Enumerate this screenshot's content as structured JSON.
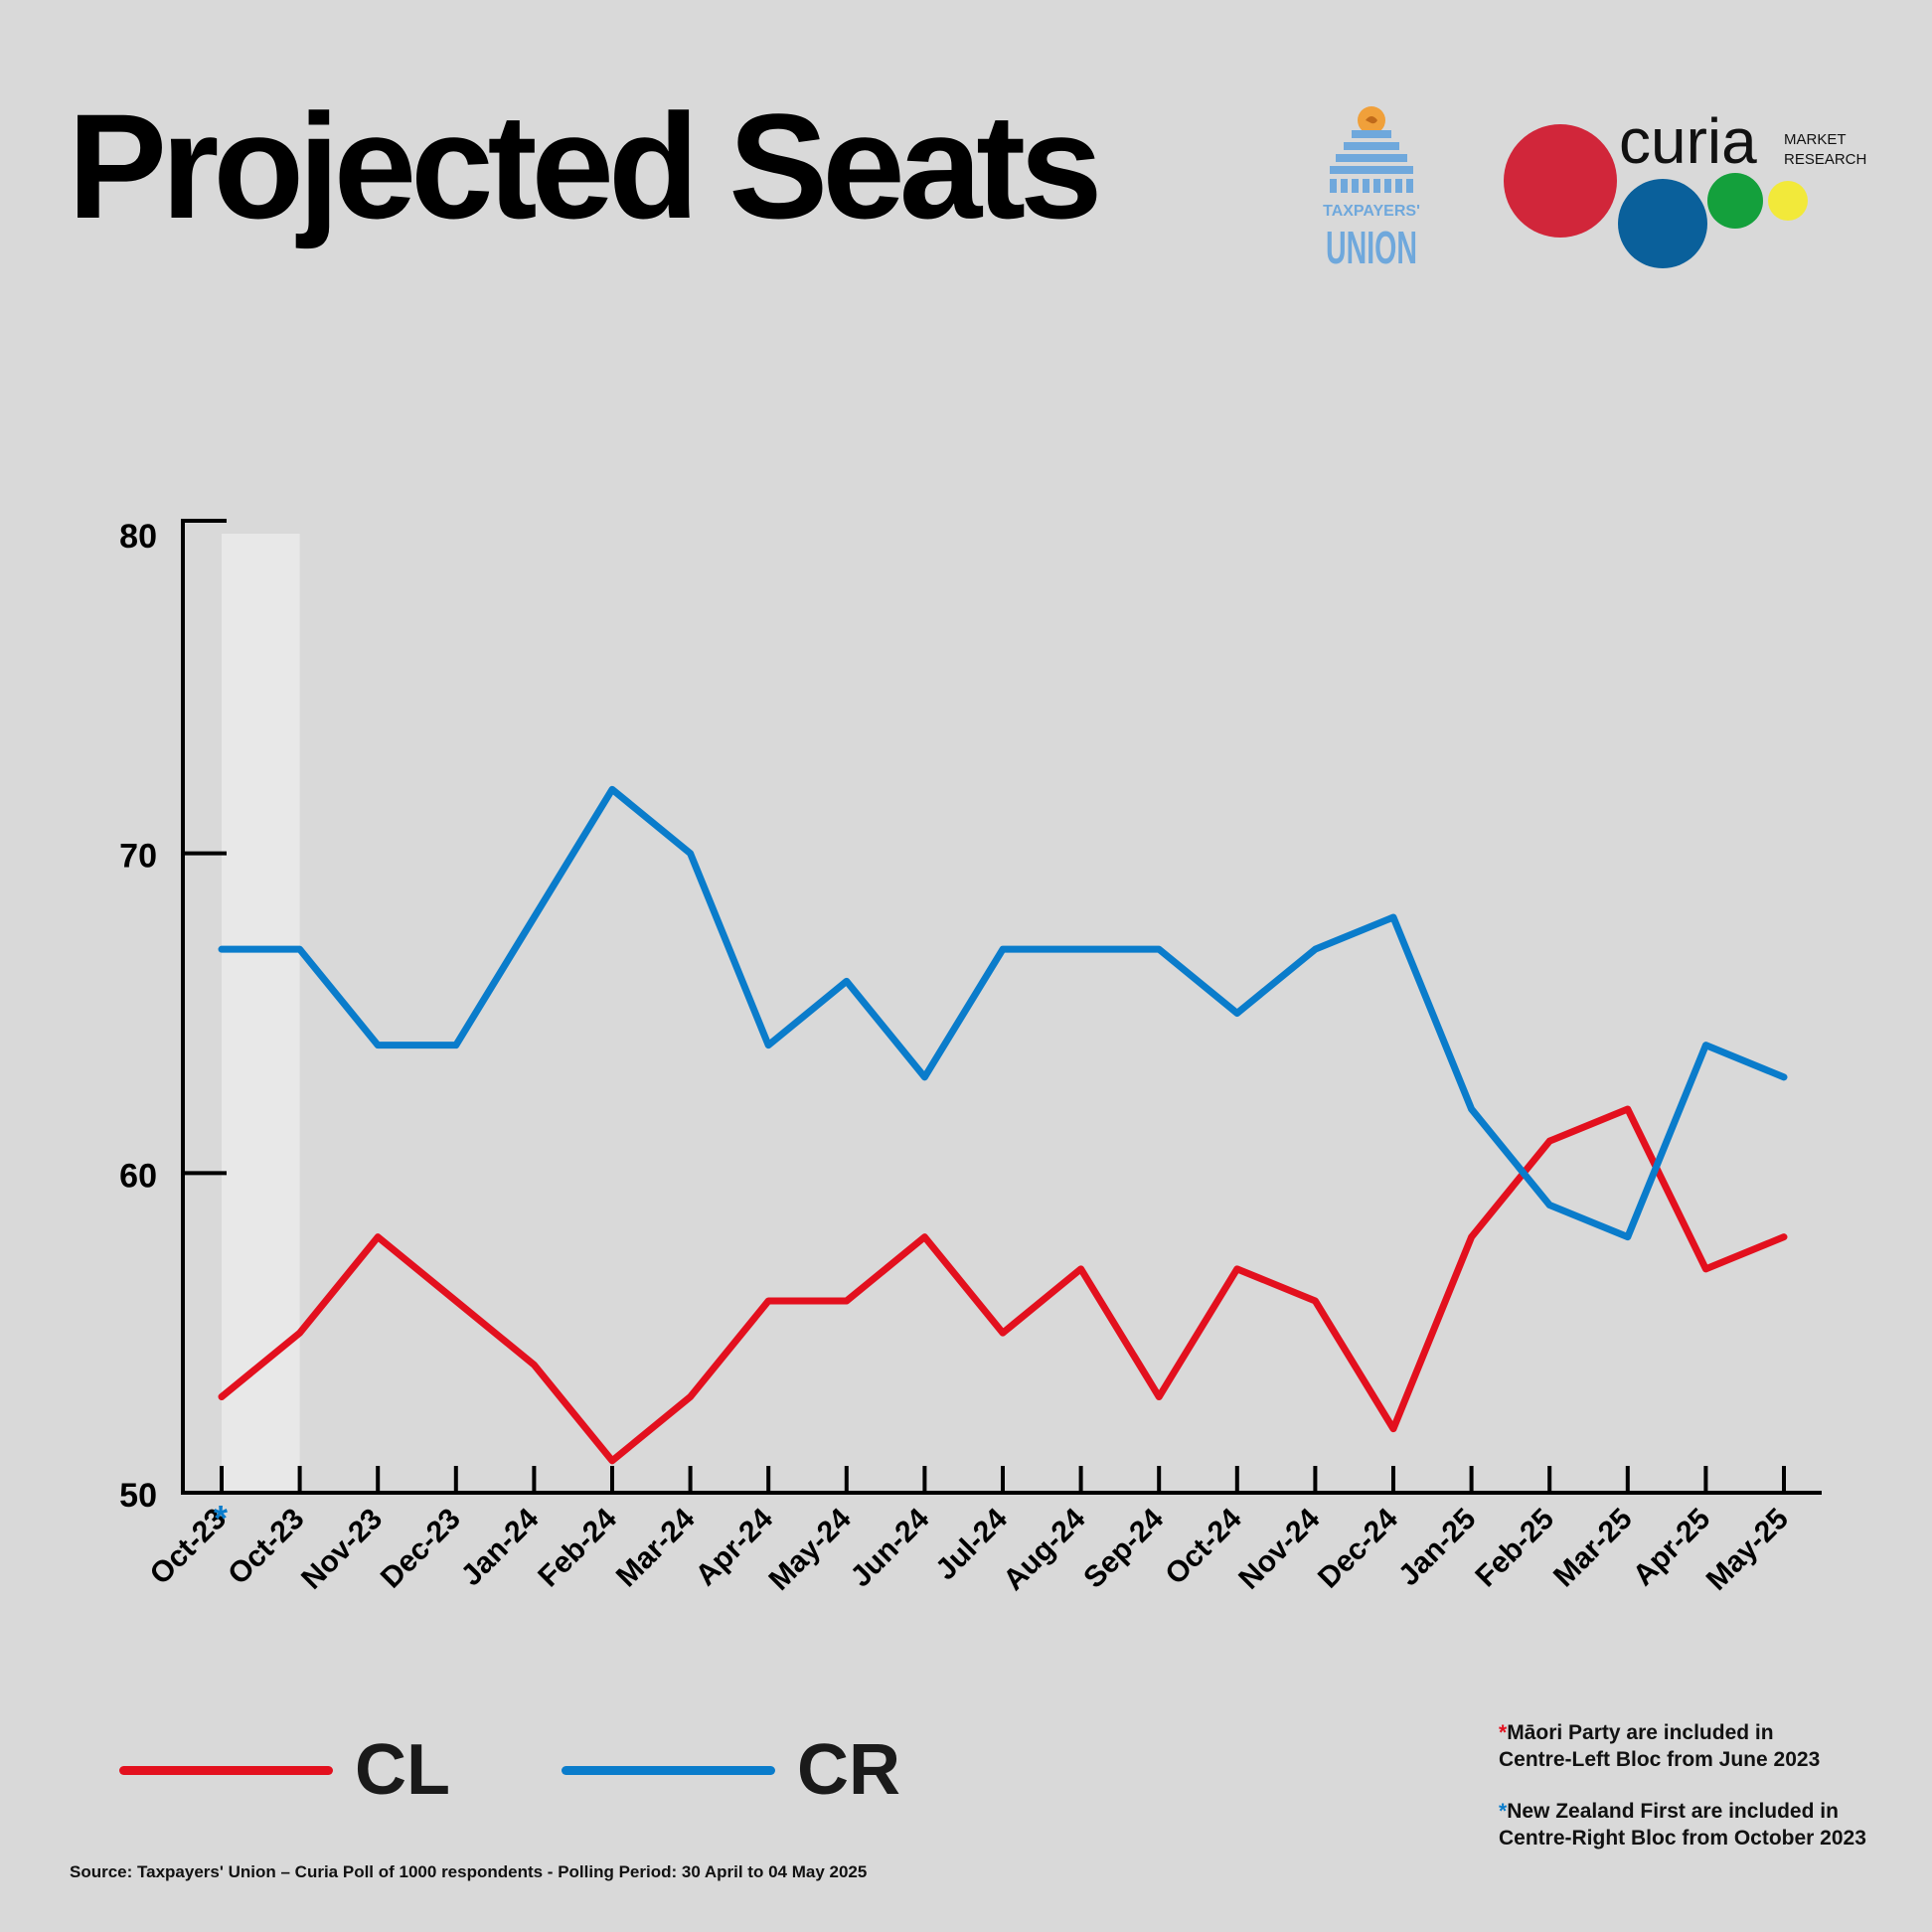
{
  "title": "Projected Seats",
  "logos": {
    "taxpayers_union": [
      "TAXPAYERS'",
      "UNION"
    ],
    "curia": {
      "name": "curia",
      "sub1": "MARKET",
      "sub2": "RESEARCH"
    }
  },
  "colors": {
    "cl": "#e3101e",
    "cr": "#0a7ccb",
    "background": "#d9d9d9",
    "highlight": "#e8e8e8"
  },
  "chart_data": {
    "type": "line",
    "categories": [
      "Oct-23",
      "Oct-23",
      "Nov-23",
      "Dec-23",
      "Jan-24",
      "Feb-24",
      "Mar-24",
      "Apr-24",
      "May-24",
      "Jun-24",
      "Jul-24",
      "Aug-24",
      "Sep-24",
      "Oct-24",
      "Nov-24",
      "Dec-24",
      "Jan-25",
      "Feb-25",
      "Mar-25",
      "Apr-25",
      "May-25"
    ],
    "first_category_marker": "*",
    "highlighted_category_range": [
      0,
      1
    ],
    "series": [
      {
        "name": "CL",
        "color": "#e3101e",
        "values": [
          53,
          55,
          58,
          56,
          54,
          51,
          53,
          56,
          56,
          58,
          55,
          57,
          53,
          57,
          56,
          52,
          58,
          61,
          62,
          57,
          58
        ]
      },
      {
        "name": "CR",
        "color": "#0a7ccb",
        "values": [
          67,
          67,
          64,
          64,
          68,
          72,
          70,
          64,
          66,
          63,
          67,
          67,
          67,
          65,
          67,
          68,
          62,
          59,
          58,
          64,
          63
        ]
      }
    ],
    "yticks": [
      50,
      60,
      70,
      80
    ],
    "ylim": [
      50,
      80
    ],
    "xlabel": "",
    "ylabel": "",
    "grid": false,
    "legend_position": "bottom-left"
  },
  "legend": [
    {
      "label": "CL",
      "color": "#e3101e"
    },
    {
      "label": "CR",
      "color": "#0a7ccb"
    }
  ],
  "notes": [
    {
      "star": "*",
      "star_color": "#e3101e",
      "line1": "Māori Party are included in",
      "line2": "Centre-Left Bloc from June 2023"
    },
    {
      "star": "*",
      "star_color": "#0a7ccb",
      "line1": "New Zealand First are included in",
      "line2": "Centre-Right Bloc from October 2023"
    }
  ],
  "source": "Source: Taxpayers' Union – Curia Poll of 1000 respondents -  Polling Period: 30 April to 04 May 2025"
}
